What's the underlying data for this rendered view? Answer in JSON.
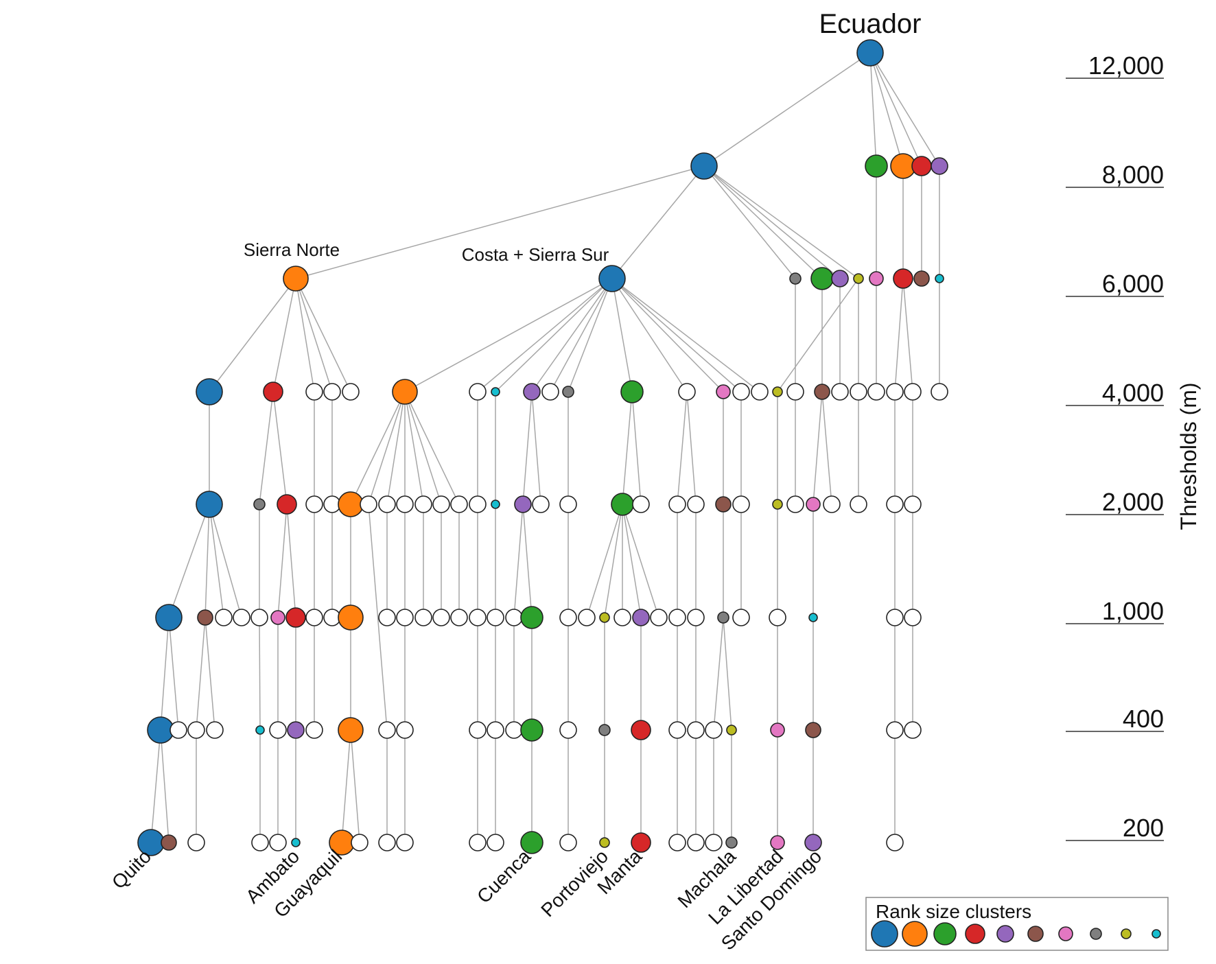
{
  "title": "Ecuador",
  "axis": {
    "title": "Thresholds (m)",
    "levels": [
      "12,000",
      "8,000",
      "6,000",
      "4,000",
      "2,000",
      "1,000",
      "400",
      "200"
    ]
  },
  "regions": {
    "sierra_norte": "Sierra Norte",
    "costa_sierra_sur": "Costa + Sierra Sur"
  },
  "cities": [
    "Quito",
    "Ambato",
    "Guayaquil",
    "Cuenca",
    "Portoviejo",
    "Manta",
    "Machala",
    "La Libertad",
    "Santo Domingo"
  ],
  "legend": {
    "title": "Rank size clusters",
    "items": [
      {
        "rank": 1,
        "color": "#1f77b4"
      },
      {
        "rank": 2,
        "color": "#ff7f0e"
      },
      {
        "rank": 3,
        "color": "#2ca02c"
      },
      {
        "rank": 4,
        "color": "#d62728"
      },
      {
        "rank": 5,
        "color": "#9467bd"
      },
      {
        "rank": 6,
        "color": "#8c564b"
      },
      {
        "rank": 7,
        "color": "#e377c2"
      },
      {
        "rank": 8,
        "color": "#7f7f7f"
      },
      {
        "rank": 9,
        "color": "#bcbd22"
      },
      {
        "rank": 10,
        "color": "#17becf"
      }
    ]
  },
  "colors": {
    "unranked": "#ffffff",
    "edge": "#a6a6a6",
    "outline": "#222222"
  }
}
